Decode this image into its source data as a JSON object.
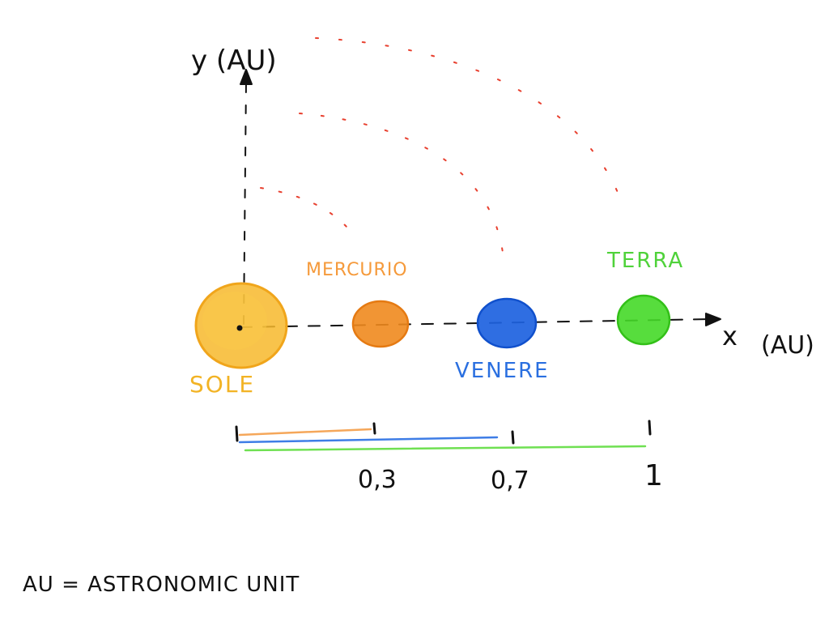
{
  "axes": {
    "y_label": "y (AU)",
    "x_label": "x",
    "x_unit": "(AU)"
  },
  "bodies": [
    {
      "id": "sun",
      "label": "SOLE",
      "color": "#f7b82c",
      "label_color": "#f2b324"
    },
    {
      "id": "mercury",
      "label": "MERCURIO",
      "color": "#f08a1e",
      "label_color": "#f59a3b"
    },
    {
      "id": "venus",
      "label": "VENERE",
      "color": "#1d62e0",
      "label_color": "#2a6fe0"
    },
    {
      "id": "earth",
      "label": "TERRA",
      "color": "#45d928",
      "label_color": "#4fd23a"
    }
  ],
  "scale": {
    "ticks": [
      "0,3",
      "0,7",
      "1"
    ]
  },
  "orbit_color": "#e8402f",
  "footnote": "AU = ASTRONOMIC UNIT"
}
